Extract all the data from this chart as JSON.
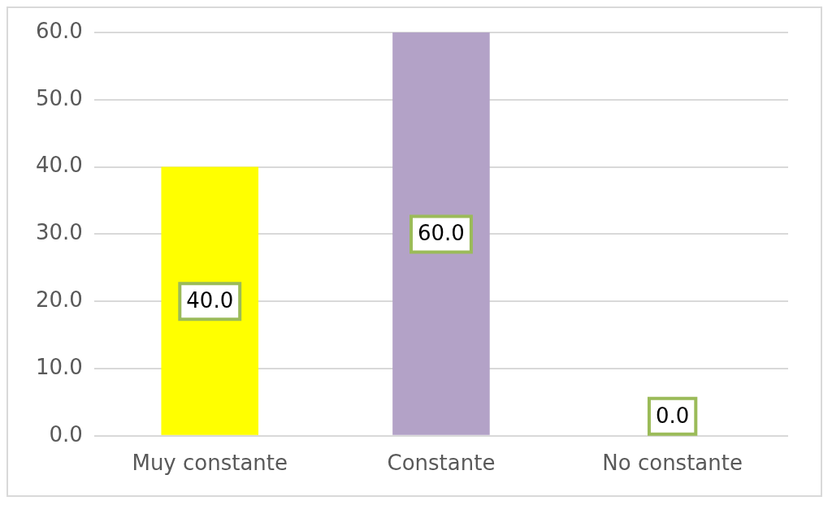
{
  "chart_data": {
    "type": "bar",
    "categories": [
      "Muy constante",
      "Constante",
      "No constante"
    ],
    "values": [
      40.0,
      60.0,
      0.0
    ],
    "colors": [
      "#ffff00",
      "#b3a2c7",
      "#376092"
    ],
    "ylim": [
      0,
      60
    ],
    "yticks": [
      {
        "value": 0,
        "label": "0.0"
      },
      {
        "value": 10,
        "label": "10.0"
      },
      {
        "value": 20,
        "label": "20.0"
      },
      {
        "value": 30,
        "label": "30.0"
      },
      {
        "value": 40,
        "label": "40.0"
      },
      {
        "value": 50,
        "label": "50.0"
      },
      {
        "value": 60,
        "label": "60.0"
      }
    ],
    "value_labels": [
      "40.0",
      "60.0",
      "0.0"
    ],
    "grid": "y",
    "legend": false
  }
}
